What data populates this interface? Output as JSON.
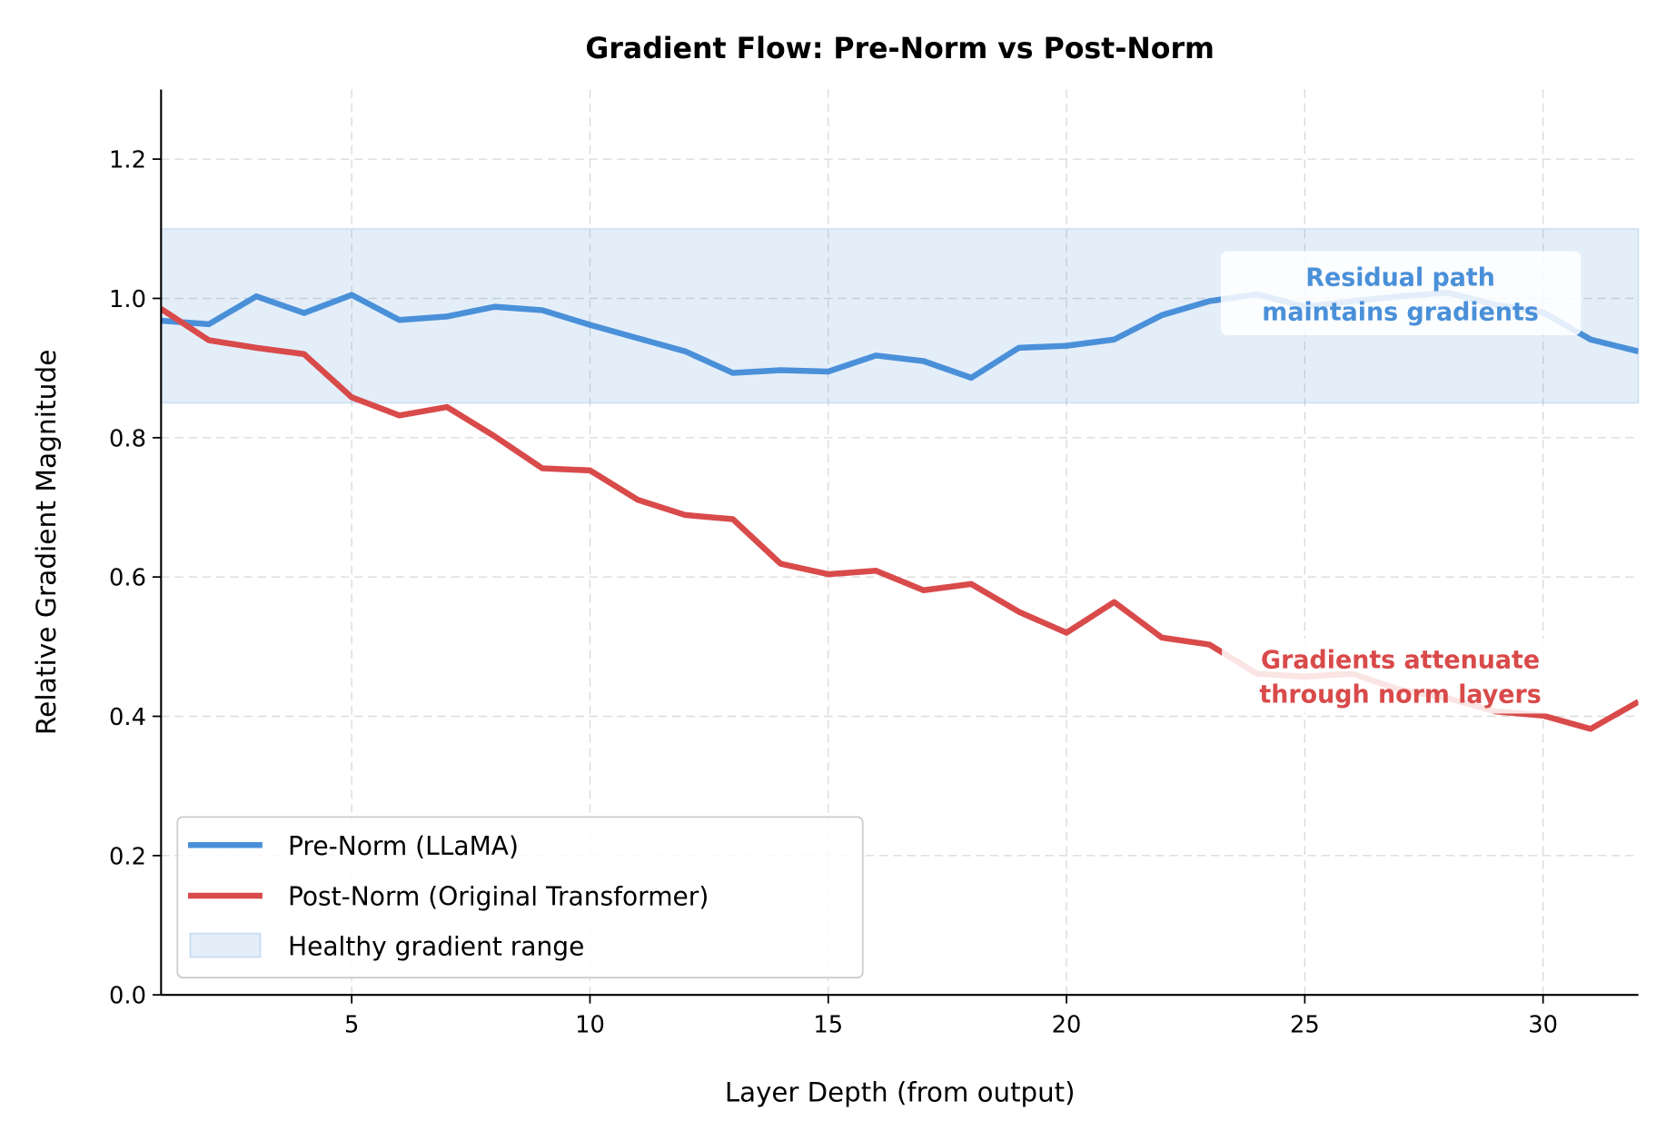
{
  "chart_data": {
    "type": "line",
    "title": "Gradient Flow: Pre-Norm vs Post-Norm",
    "xlabel": "Layer Depth (from output)",
    "ylabel": "Relative Gradient Magnitude",
    "xlim": [
      1,
      32
    ],
    "ylim": [
      0,
      1.3
    ],
    "xticks": [
      5,
      10,
      15,
      20,
      25,
      30
    ],
    "yticks": [
      "0.0",
      "0.2",
      "0.4",
      "0.6",
      "0.8",
      "1.0",
      "1.2"
    ],
    "grid": true,
    "legend_position": "lower-left",
    "x": [
      1,
      2,
      3,
      4,
      5,
      6,
      7,
      8,
      9,
      10,
      11,
      12,
      13,
      14,
      15,
      16,
      17,
      18,
      19,
      20,
      21,
      22,
      23,
      24,
      25,
      26,
      27,
      28,
      29,
      30,
      31,
      32
    ],
    "series": [
      {
        "name": "Pre-Norm (LLaMA)",
        "color": "#4a90d9",
        "values": [
          0.968,
          0.963,
          1.003,
          0.979,
          1.005,
          0.969,
          0.974,
          0.988,
          0.983,
          0.962,
          0.943,
          0.924,
          0.893,
          0.897,
          0.895,
          0.918,
          0.91,
          0.886,
          0.929,
          0.932,
          0.941,
          0.976,
          0.996,
          1.006,
          0.988,
          0.996,
          1.003,
          1.008,
          0.991,
          0.98,
          0.941,
          0.924
        ]
      },
      {
        "name": "Post-Norm (Original Transformer)",
        "color": "#d94a4a",
        "values": [
          0.985,
          0.94,
          0.929,
          0.92,
          0.858,
          0.832,
          0.844,
          0.802,
          0.756,
          0.753,
          0.711,
          0.689,
          0.683,
          0.619,
          0.604,
          0.609,
          0.581,
          0.59,
          0.55,
          0.52,
          0.564,
          0.513,
          0.503,
          0.461,
          0.457,
          0.461,
          0.438,
          0.426,
          0.407,
          0.401,
          0.382,
          0.421
        ]
      }
    ],
    "band": {
      "name": "Healthy gradient range",
      "low": 0.85,
      "high": 1.1,
      "color": "#4a90d9"
    },
    "annotations": [
      {
        "lines": [
          "Residual path",
          "maintains gradients"
        ],
        "color": "#4a90d9"
      },
      {
        "lines": [
          "Gradients attenuate",
          "through norm layers"
        ],
        "color": "#d94a4a"
      }
    ]
  }
}
